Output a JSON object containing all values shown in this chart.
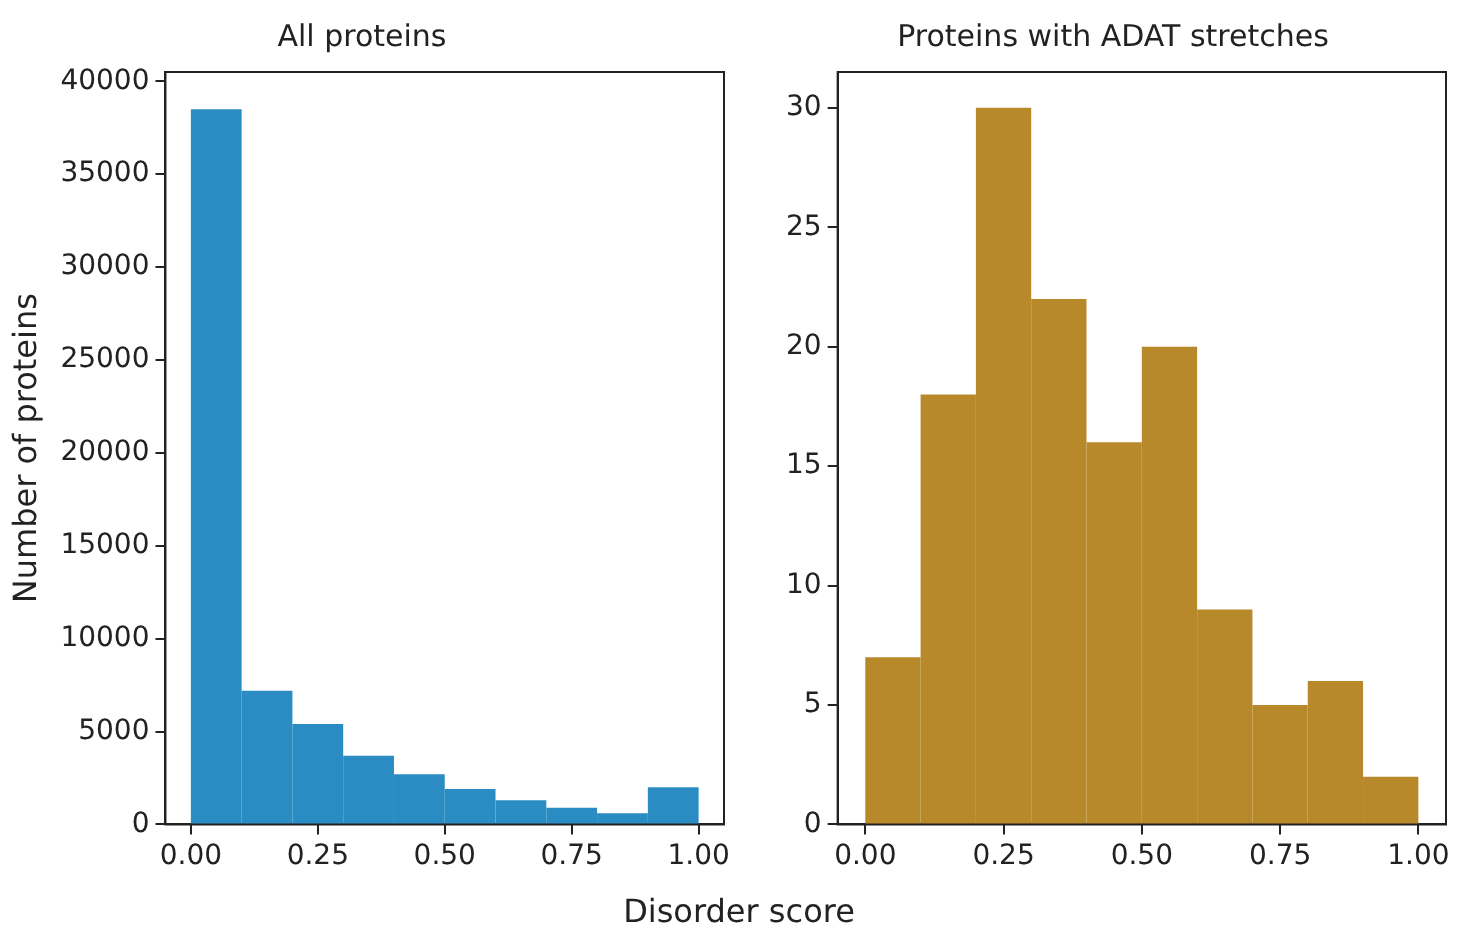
{
  "chart_data": [
    {
      "type": "histogram",
      "title": "All proteins",
      "xlabel": "Disorder score",
      "ylabel": "Number of proteins",
      "bins": [
        0,
        0.1,
        0.2,
        0.3,
        0.4,
        0.5,
        0.6,
        0.7,
        0.8,
        0.9,
        1.0
      ],
      "values": [
        38500,
        7200,
        5400,
        3700,
        2700,
        1900,
        1300,
        900,
        600,
        2000
      ],
      "color": "#2b8cc4",
      "xlim": [
        -0.05,
        1.05
      ],
      "xticks": [
        {
          "value": 0,
          "label": "0.00"
        },
        {
          "value": 0.25,
          "label": "0.25"
        },
        {
          "value": 0.5,
          "label": "0.50"
        },
        {
          "value": 0.75,
          "label": "0.75"
        },
        {
          "value": 1,
          "label": "1.00"
        }
      ],
      "ylim": [
        0,
        40500
      ],
      "yticks": [
        0,
        5000,
        10000,
        15000,
        20000,
        25000,
        30000,
        35000,
        40000
      ],
      "grid": false,
      "legend": false
    },
    {
      "type": "histogram",
      "title": "Proteins with ADAT stretches",
      "bins": [
        0,
        0.1,
        0.2,
        0.3,
        0.4,
        0.5,
        0.6,
        0.7,
        0.8,
        0.9,
        1.0
      ],
      "values": [
        7,
        18,
        30,
        22,
        16,
        20,
        9,
        5,
        6,
        2
      ],
      "color": "#b8892a",
      "xlim": [
        -0.05,
        1.05
      ],
      "xticks": [
        {
          "value": 0,
          "label": "0.00"
        },
        {
          "value": 0.25,
          "label": "0.25"
        },
        {
          "value": 0.5,
          "label": "0.50"
        },
        {
          "value": 0.75,
          "label": "0.75"
        },
        {
          "value": 1,
          "label": "1.00"
        }
      ],
      "ylim": [
        0,
        31.5
      ],
      "yticks": [
        0,
        5,
        10,
        15,
        20,
        25,
        30
      ],
      "grid": false,
      "legend": false
    }
  ]
}
